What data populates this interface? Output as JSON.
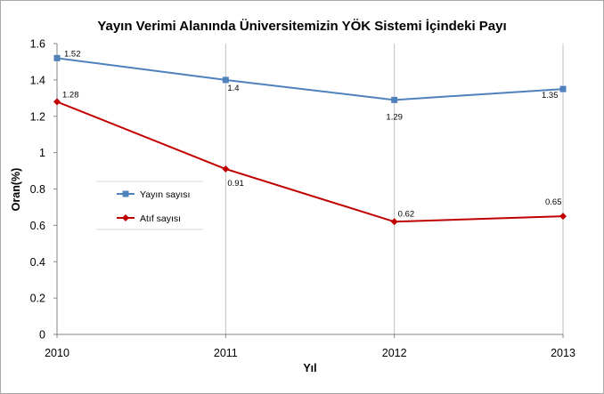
{
  "chart_data": {
    "type": "line",
    "title": "Yayın Verimi Alanında Üniversitemizin YÖK Sistemi İçindeki Payı",
    "xlabel": "Yıl",
    "ylabel": "Oran(%)",
    "x": [
      "2010",
      "2011",
      "2012",
      "2013"
    ],
    "ylim": [
      0,
      1.6
    ],
    "yticks": [
      "0",
      "0.2",
      "0.4",
      "0.6",
      "0.8",
      "1",
      "1.2",
      "1.4",
      "1.6"
    ],
    "grid": "vertical",
    "legend": "middle-left",
    "series": [
      {
        "name": "Yayın sayısı",
        "color": "#4f81bd",
        "marker": "square",
        "values": [
          1.52,
          1.4,
          1.29,
          1.35
        ],
        "labels": [
          "1.52",
          "1.4",
          "1.29",
          "1.35"
        ]
      },
      {
        "name": "Atıf sayısı",
        "color": "#c00000",
        "marker": "diamond",
        "values": [
          1.28,
          0.91,
          0.62,
          0.65
        ],
        "labels": [
          "1.28",
          "0.91",
          "0.62",
          "0.65"
        ]
      }
    ]
  }
}
